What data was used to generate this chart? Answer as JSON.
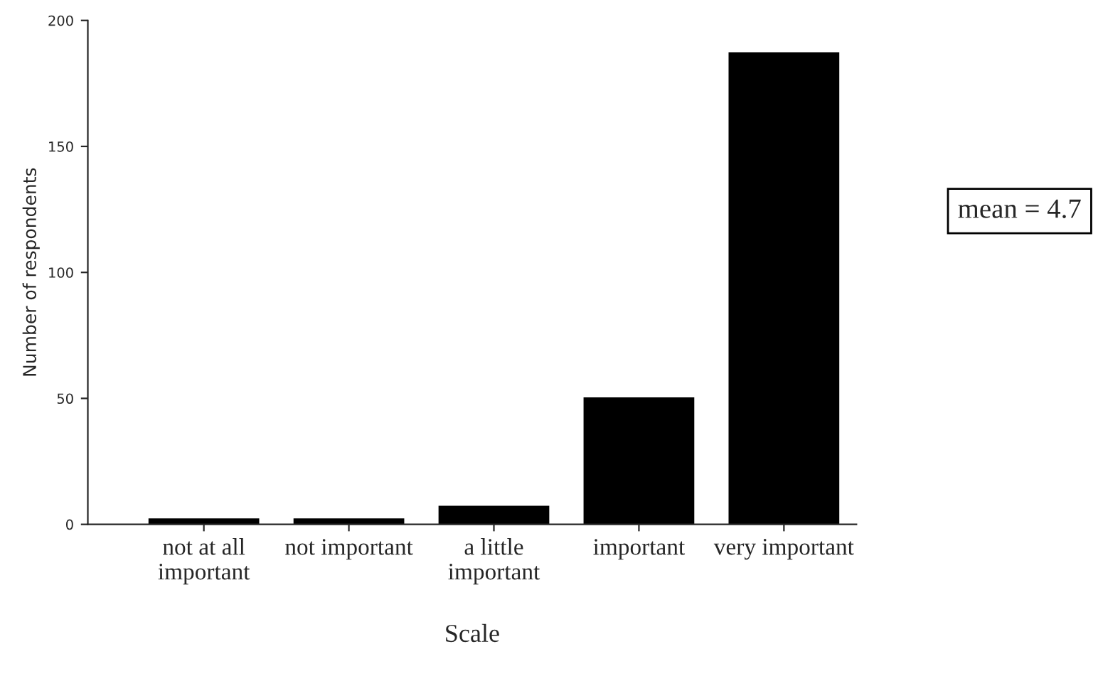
{
  "chart_data": {
    "type": "bar",
    "xlabel": "Scale",
    "ylabel": "Number of respondents",
    "categories": [
      "not at all\nimportant",
      "not important",
      "a little\nimportant",
      "important",
      "very important"
    ],
    "values": [
      2,
      2,
      7,
      50,
      187
    ],
    "color": "#000000",
    "ylim": [
      0,
      200
    ],
    "yticks": [
      0,
      50,
      100,
      150,
      200
    ],
    "grid": false,
    "legend": false,
    "annotations": [
      "mean = 4.7"
    ]
  }
}
